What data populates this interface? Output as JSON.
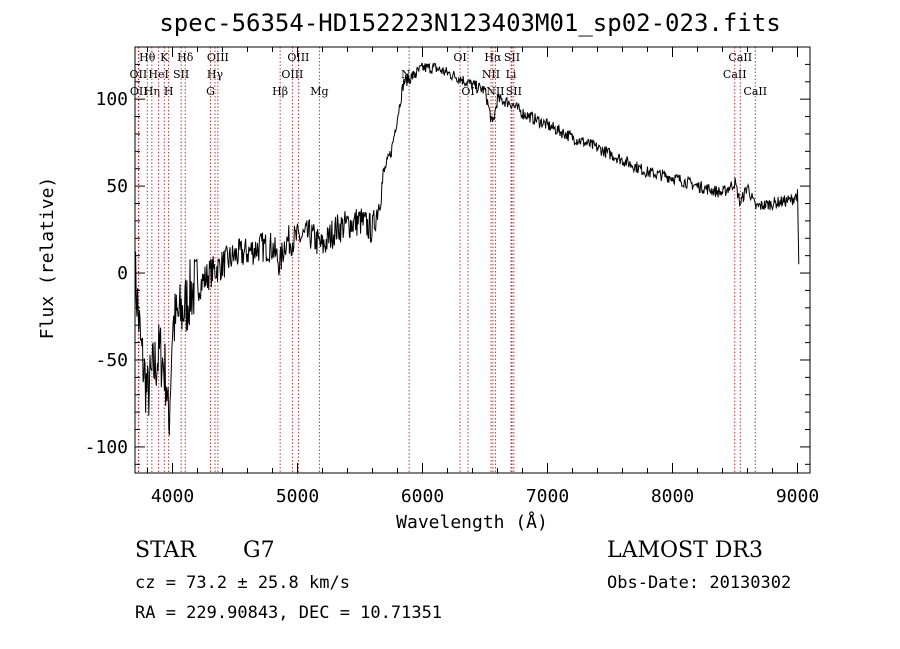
{
  "chart_data": {
    "type": "line",
    "title": "spec-56354-HD152223N123403M01_sp02-023.fits",
    "xlabel": "Wavelength (Å)",
    "ylabel": "Flux (relative)",
    "xlim": [
      3700,
      9100
    ],
    "ylim": [
      -115,
      130
    ],
    "xticks": [
      4000,
      5000,
      6000,
      7000,
      8000,
      9000
    ],
    "yticks": [
      -100,
      -50,
      0,
      50,
      100
    ],
    "series": [
      {
        "name": "spectrum",
        "x": [
          3700,
          3750,
          3800,
          3850,
          3900,
          3950,
          3970,
          4000,
          4050,
          4100,
          4150,
          4200,
          4300,
          4400,
          4500,
          4600,
          4700,
          4800,
          4860,
          4900,
          5000,
          5100,
          5200,
          5300,
          5400,
          5500,
          5600,
          5650,
          5700,
          5750,
          5800,
          5850,
          5900,
          5950,
          6000,
          6100,
          6200,
          6300,
          6400,
          6500,
          6560,
          6600,
          6700,
          6800,
          7000,
          7200,
          7400,
          7600,
          7800,
          8000,
          8200,
          8400,
          8500,
          8542,
          8600,
          8662,
          8800,
          8950,
          9000,
          9010
        ],
        "y": [
          0,
          -45,
          -70,
          -55,
          -45,
          -60,
          -90,
          -30,
          -25,
          -20,
          -10,
          -8,
          0,
          5,
          10,
          12,
          15,
          15,
          5,
          18,
          20,
          22,
          15,
          25,
          28,
          30,
          25,
          40,
          60,
          70,
          90,
          110,
          112,
          115,
          118,
          118,
          115,
          112,
          108,
          105,
          85,
          100,
          98,
          92,
          85,
          78,
          72,
          65,
          58,
          55,
          50,
          46,
          52,
          40,
          50,
          38,
          40,
          42,
          45,
          5
        ]
      }
    ],
    "lines": [
      {
        "label": "Hθ",
        "wave": 3798,
        "row": 0
      },
      {
        "label": "OII",
        "wave": 3727,
        "row": 1
      },
      {
        "label": "OII",
        "wave": 3730,
        "row": 2
      },
      {
        "label": "Hη",
        "wave": 3835,
        "row": 2
      },
      {
        "label": "HeI",
        "wave": 3889,
        "row": 1
      },
      {
        "label": "K",
        "wave": 3934,
        "row": 0
      },
      {
        "label": "SII",
        "wave": 4069,
        "row": 1
      },
      {
        "label": "H",
        "wave": 3969,
        "row": 2
      },
      {
        "label": "Hδ",
        "wave": 4102,
        "row": 0
      },
      {
        "label": "OIII",
        "wave": 4363,
        "row": 0
      },
      {
        "label": "Hγ",
        "wave": 4340,
        "row": 1
      },
      {
        "label": "G",
        "wave": 4304,
        "row": 2
      },
      {
        "label": "Hβ",
        "wave": 4861,
        "row": 2
      },
      {
        "label": "OIII",
        "wave": 5007,
        "row": 0
      },
      {
        "label": "OIII",
        "wave": 4959,
        "row": 1
      },
      {
        "label": "Mg",
        "wave": 5175,
        "row": 2
      },
      {
        "label": "Na",
        "wave": 5893,
        "row": 1
      },
      {
        "label": "OI",
        "wave": 6300,
        "row": 0
      },
      {
        "label": "OI",
        "wave": 6364,
        "row": 2
      },
      {
        "label": "Hα",
        "wave": 6563,
        "row": 0
      },
      {
        "label": "NII",
        "wave": 6548,
        "row": 1
      },
      {
        "label": "NII",
        "wave": 6583,
        "row": 2
      },
      {
        "label": "SII",
        "wave": 6716,
        "row": 0
      },
      {
        "label": "Li",
        "wave": 6708,
        "row": 1
      },
      {
        "label": "SII",
        "wave": 6731,
        "row": 2
      },
      {
        "label": "CaII",
        "wave": 8542,
        "row": 0
      },
      {
        "label": "CaII",
        "wave": 8498,
        "row": 1
      },
      {
        "label": "CaII",
        "wave": 8662,
        "row": 2
      }
    ]
  },
  "info": {
    "class_label": "STAR",
    "subclass": "G7",
    "survey": "LAMOST DR3",
    "cz": "cz = 73.2 ± 25.8 km/s",
    "obs_date": "Obs-Date: 20130302",
    "coords": "RA = 229.90843, DEC =  10.71351"
  }
}
